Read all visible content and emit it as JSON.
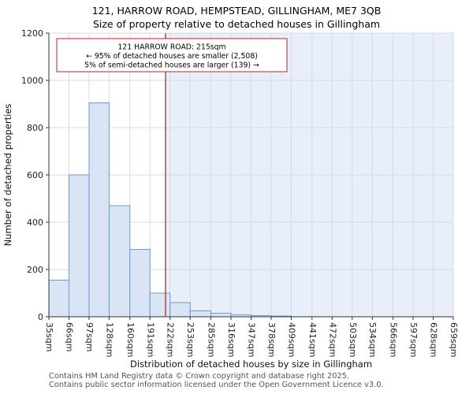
{
  "chart_data": {
    "type": "bar",
    "title": "121, HARROW ROAD, HEMPSTEAD, GILLINGHAM, ME7 3QB",
    "subtitle": "Size of property relative to detached houses in Gillingham",
    "xlabel": "Distribution of detached houses by size in Gillingham",
    "ylabel": "Number of detached properties",
    "categories": [
      "35sqm",
      "66sqm",
      "97sqm",
      "128sqm",
      "160sqm",
      "191sqm",
      "222sqm",
      "253sqm",
      "285sqm",
      "316sqm",
      "347sqm",
      "378sqm",
      "409sqm",
      "441sqm",
      "472sqm",
      "503sqm",
      "534sqm",
      "566sqm",
      "597sqm",
      "628sqm",
      "659sqm"
    ],
    "bin_edges": [
      35,
      66,
      97,
      128,
      160,
      191,
      222,
      253,
      285,
      316,
      347,
      378,
      409,
      441,
      472,
      503,
      534,
      566,
      597,
      628,
      659
    ],
    "values": [
      155,
      600,
      905,
      470,
      285,
      100,
      60,
      25,
      15,
      8,
      5,
      3,
      0,
      0,
      0,
      0,
      0,
      0,
      0,
      0
    ],
    "ylim": [
      0,
      1200
    ],
    "yticks": [
      0,
      200,
      400,
      600,
      800,
      1000,
      1200
    ],
    "grid": "on",
    "marker": {
      "value": 215,
      "label": "121 HARROW ROAD: 215sqm"
    },
    "annotation": [
      "121 HARROW ROAD: 215sqm",
      "← 95% of detached houses are smaller (2,508)",
      "5% of semi-detached houses are larger (139) →"
    ],
    "colors": {
      "bar_fill": "#d9e5f5",
      "bar_edge": "#6f98d4",
      "marker_line": "#aa1f1f",
      "annotation_border": "#bb2222",
      "shade": "#e9eefb",
      "grid": "#d4dbe8",
      "axis": "#333333"
    }
  },
  "footer": {
    "line1": "Contains HM Land Registry data © Crown copyright and database right 2025.",
    "line2": "Contains public sector information licensed under the Open Government Licence v3.0."
  }
}
